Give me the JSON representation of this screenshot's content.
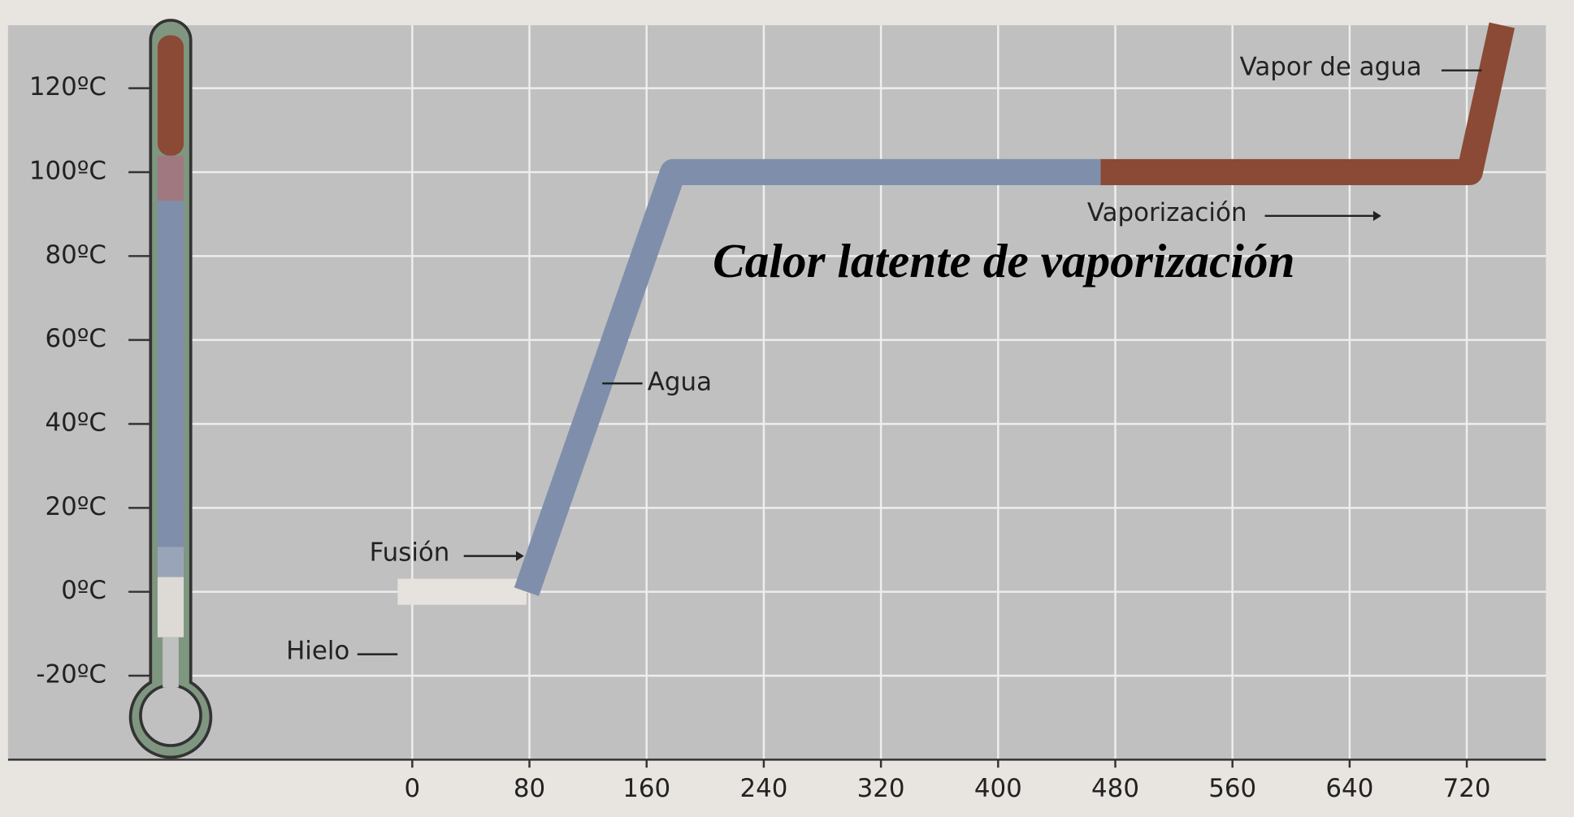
{
  "chart_data": {
    "type": "line",
    "title": "Calor latente de vaporización",
    "xlim": [
      -276,
      774
    ],
    "ylim": [
      -40,
      135
    ],
    "xticks": [
      0,
      80,
      160,
      240,
      320,
      400,
      480,
      560,
      640,
      720
    ],
    "yticks": [
      {
        "value": -20,
        "label": "-20ºC"
      },
      {
        "value": 0,
        "label": "0ºC"
      },
      {
        "value": 20,
        "label": "20ºC"
      },
      {
        "value": 40,
        "label": "40ºC"
      },
      {
        "value": 60,
        "label": "60ºC"
      },
      {
        "value": 80,
        "label": "80ºC"
      },
      {
        "value": 100,
        "label": "100ºC"
      },
      {
        "value": 120,
        "label": "120ºC"
      }
    ],
    "grid": true,
    "series": [
      {
        "color": "#e6e2de",
        "x": [
          -10,
          78
        ],
        "values": [
          0,
          0
        ]
      },
      {
        "color": "#7f8fab",
        "x": [
          78,
          178,
          470
        ],
        "values": [
          0,
          100,
          100
        ]
      },
      {
        "color": "#8b4a35",
        "x": [
          470,
          722,
          744
        ],
        "values": [
          100,
          100,
          135
        ]
      }
    ],
    "annotations": [
      "Hielo",
      "Fusión",
      "Agua",
      "Vaporización",
      "Vapor de agua"
    ]
  }
}
